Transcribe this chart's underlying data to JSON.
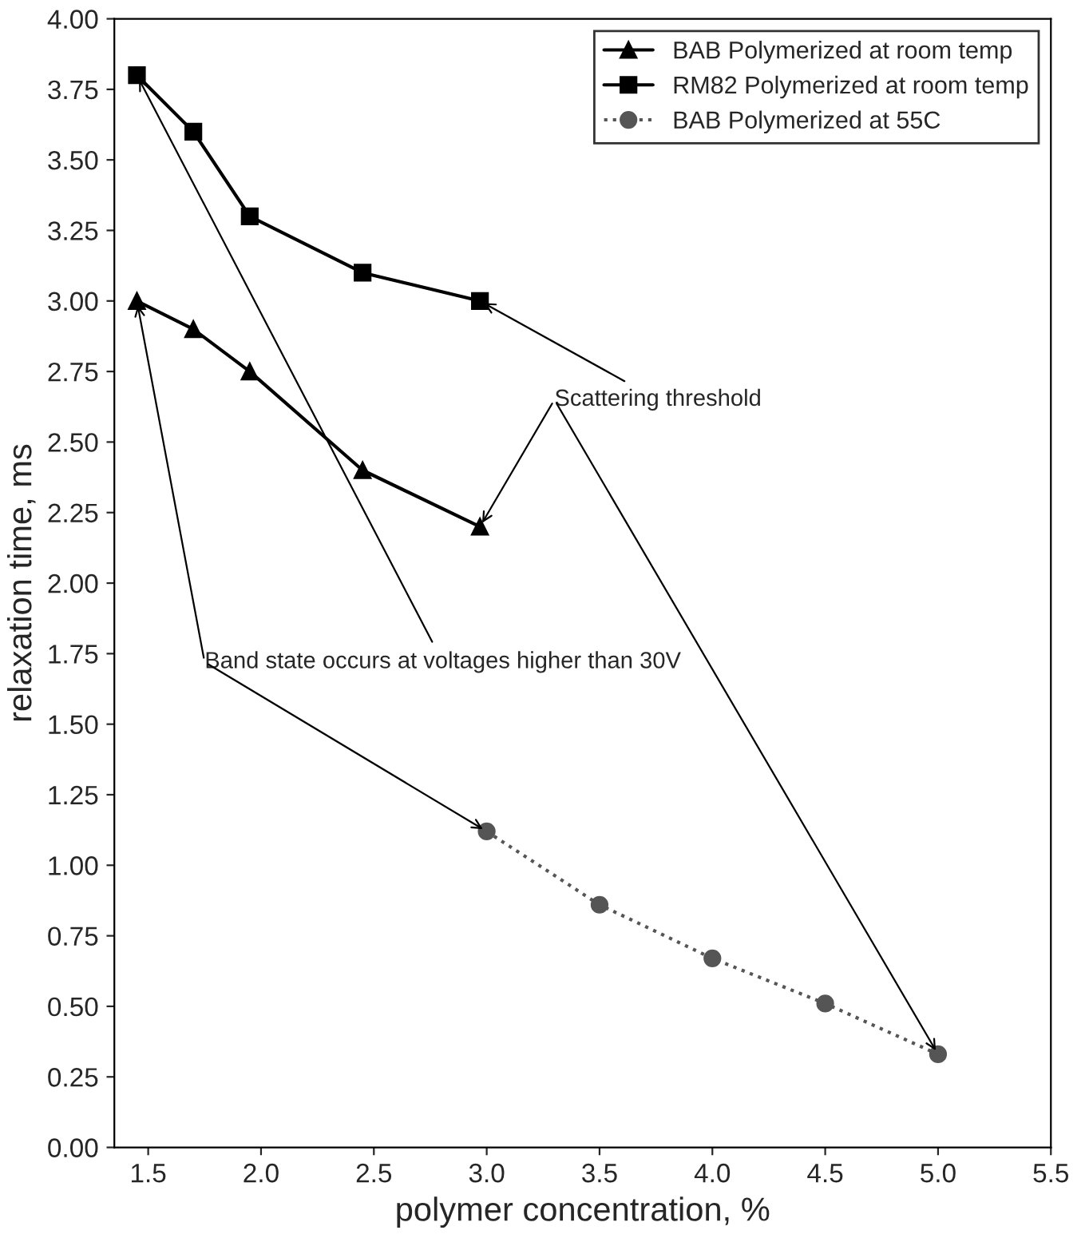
{
  "chart_data": {
    "type": "line",
    "xlabel": "polymer concentration, %",
    "ylabel": "relaxation time, ms",
    "xlim": [
      1.35,
      5.5
    ],
    "ylim": [
      0,
      4
    ],
    "xticks": [
      {
        "value": 1.5,
        "label": "1.5"
      },
      {
        "value": 2.0,
        "label": "2.0"
      },
      {
        "value": 2.5,
        "label": "2.5"
      },
      {
        "value": 3.0,
        "label": "3.0"
      },
      {
        "value": 3.5,
        "label": "3.5"
      },
      {
        "value": 4.0,
        "label": "4.0"
      },
      {
        "value": 4.5,
        "label": "4.5"
      },
      {
        "value": 5.0,
        "label": "5.0"
      },
      {
        "value": 5.5,
        "label": "5.5"
      }
    ],
    "yticks": [
      {
        "value": 0,
        "label": "0.00"
      },
      {
        "value": 0.25,
        "label": "0.25"
      },
      {
        "value": 0.5,
        "label": "0.50"
      },
      {
        "value": 0.75,
        "label": "0.75"
      },
      {
        "value": 1.0,
        "label": "1.00"
      },
      {
        "value": 1.25,
        "label": "1.25"
      },
      {
        "value": 1.5,
        "label": "1.50"
      },
      {
        "value": 1.75,
        "label": "1.75"
      },
      {
        "value": 2.0,
        "label": "2.00"
      },
      {
        "value": 2.25,
        "label": "2.25"
      },
      {
        "value": 2.5,
        "label": "2.50"
      },
      {
        "value": 2.75,
        "label": "2.75"
      },
      {
        "value": 3.0,
        "label": "3.00"
      },
      {
        "value": 3.25,
        "label": "3.25"
      },
      {
        "value": 3.5,
        "label": "3.50"
      },
      {
        "value": 3.75,
        "label": "3.75"
      },
      {
        "value": 4.0,
        "label": "4.00"
      }
    ],
    "grid": false,
    "legend": "top right",
    "series": [
      {
        "name": "BAB Polymerized at room temp",
        "color": "#000000",
        "marker": "triangle",
        "line_style": "solid",
        "x": [
          1.45,
          1.7,
          1.95,
          2.45,
          2.97
        ],
        "values": [
          3.0,
          2.9,
          2.75,
          2.4,
          2.2
        ]
      },
      {
        "name": "RM82 Polymerized at room temp",
        "color": "#000000",
        "marker": "square",
        "line_style": "solid",
        "x": [
          1.45,
          1.7,
          1.95,
          2.45,
          2.97
        ],
        "values": [
          3.8,
          3.6,
          3.3,
          3.1,
          3.0
        ]
      },
      {
        "name": "BAB Polymerized at 55C",
        "color": "#555555",
        "marker": "circle",
        "line_style": "dotted",
        "x": [
          3.0,
          3.5,
          4.0,
          4.5,
          5.0
        ],
        "values": [
          1.12,
          0.86,
          0.67,
          0.51,
          0.33
        ]
      }
    ],
    "annotations": [
      {
        "text": "Scattering threshold",
        "x": 2.97,
        "y": 3.0
      },
      {
        "text": "Band state occurs at voltages higher than 30V",
        "x": 1.45,
        "y": 3.8
      }
    ]
  }
}
